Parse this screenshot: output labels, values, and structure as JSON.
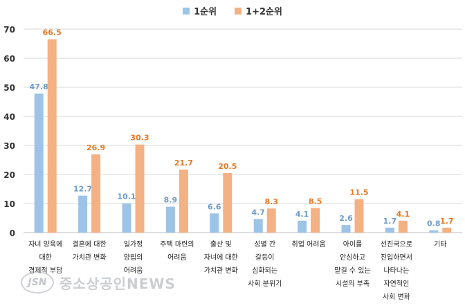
{
  "legend": {
    "series1": "1순위",
    "series2": "1+2순위"
  },
  "colors": {
    "series1": "#9dc3e6",
    "series2": "#f4b183",
    "series1_label": "#6f9cc7",
    "series2_label": "#e87722",
    "axis": "#333333",
    "grid": "#d9d9d9"
  },
  "watermark": {
    "logo": "JSN",
    "text": "중소상공인NEWS"
  },
  "chart_data": {
    "type": "bar",
    "ylim": [
      0,
      70
    ],
    "yticks": [
      "0",
      "10",
      "20",
      "30",
      "40",
      "50",
      "60",
      "70"
    ],
    "grid": true,
    "legend_position": "top-center",
    "categories": [
      [
        "자녀 양육에",
        "대한",
        "경제적 부담"
      ],
      [
        "결혼에 대한",
        "가치관 변화"
      ],
      [
        "일가정",
        "양립의",
        "어려움"
      ],
      [
        "주택 마련의",
        "어려움"
      ],
      [
        "출산 및",
        "자녀에 대한",
        "가치관 변화"
      ],
      [
        "성별 간",
        "갈등이",
        "심화되는",
        "사회 분위기"
      ],
      [
        "취업 어려움"
      ],
      [
        "아이를",
        "안심하고",
        "맡길 수 있는",
        "시설의 부족"
      ],
      [
        "선진국으로",
        "진입하면서",
        "나타나는",
        "자연적인",
        "사회 변화"
      ],
      [
        "기타"
      ]
    ],
    "series": [
      {
        "name": "1순위",
        "values": [
          47.8,
          12.7,
          10.1,
          8.9,
          6.6,
          4.7,
          4.1,
          2.6,
          1.7,
          0.8
        ],
        "labels": [
          "47.8",
          "12.7",
          "10.1",
          "8.9",
          "6.6",
          "4.7",
          "4.1",
          "2.6",
          "1.7",
          "0.8"
        ]
      },
      {
        "name": "1+2순위",
        "values": [
          66.5,
          26.9,
          30.3,
          21.7,
          20.5,
          8.3,
          8.5,
          11.5,
          4.1,
          1.7
        ],
        "labels": [
          "66.5",
          "26.9",
          "30.3",
          "21.7",
          "20.5",
          "8.3",
          "8.5",
          "11.5",
          "4.1",
          "1.7"
        ]
      }
    ]
  }
}
